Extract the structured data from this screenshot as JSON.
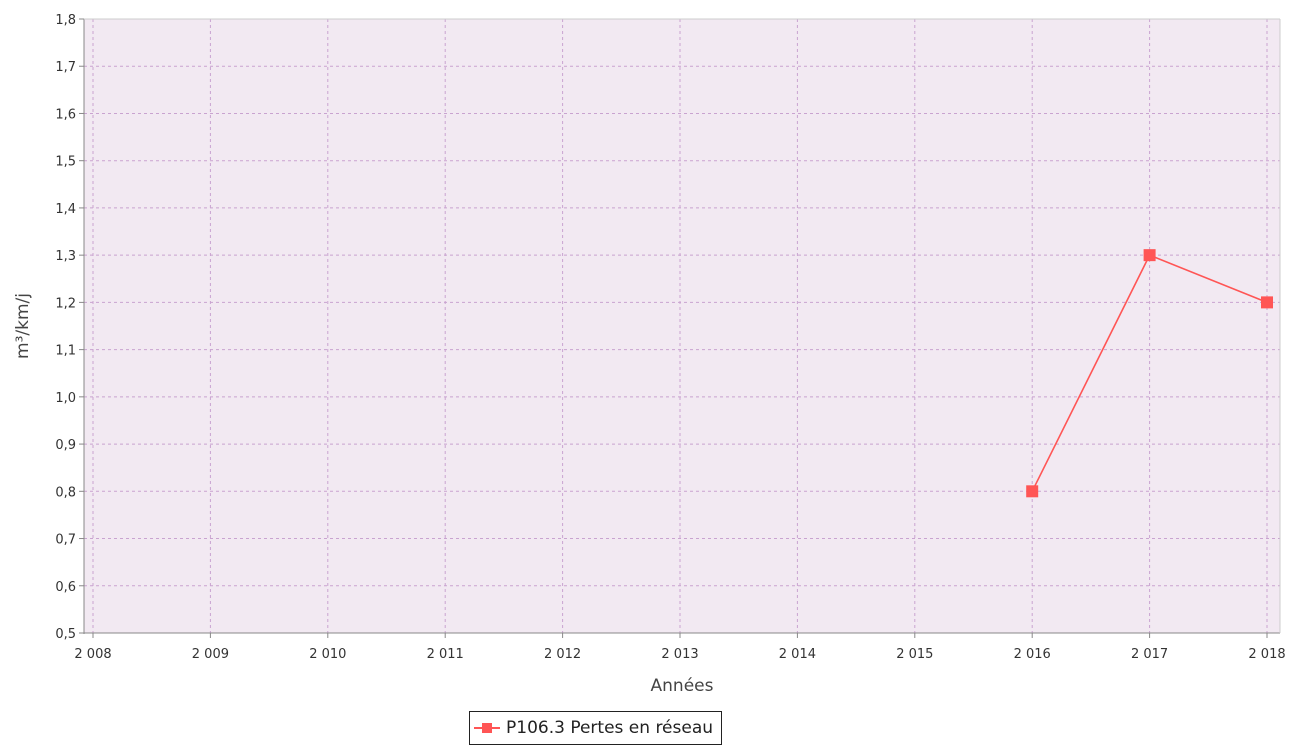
{
  "chart_data": {
    "type": "line",
    "xlabel": "Années",
    "ylabel": "m³/km/j",
    "xlim": [
      2008,
      2018
    ],
    "ylim": [
      0.5,
      1.8
    ],
    "x_ticks": [
      2008,
      2009,
      2010,
      2011,
      2012,
      2013,
      2014,
      2015,
      2016,
      2017,
      2018
    ],
    "x_tick_labels": [
      "2 008",
      "2 009",
      "2 010",
      "2 011",
      "2 012",
      "2 013",
      "2 014",
      "2 015",
      "2 016",
      "2 017",
      "2 018"
    ],
    "y_ticks": [
      0.5,
      0.6,
      0.7,
      0.8,
      0.9,
      1.0,
      1.1,
      1.2,
      1.3,
      1.4,
      1.5,
      1.6,
      1.7,
      1.8
    ],
    "y_tick_labels": [
      "0,5",
      "0,6",
      "0,7",
      "0,8",
      "0,9",
      "1,0",
      "1,1",
      "1,2",
      "1,3",
      "1,4",
      "1,5",
      "1,6",
      "1,7",
      "1,8"
    ],
    "grid": true,
    "legend_position": "bottom-center",
    "series": [
      {
        "name": "P106.3 Pertes en réseau",
        "color": "#ff5555",
        "marker": "square",
        "x": [
          2016,
          2017,
          2018
        ],
        "y": [
          0.8,
          1.3,
          1.2
        ]
      }
    ]
  },
  "colors": {
    "plot_background": "#f2e9f2",
    "grid": "#c9a3d0",
    "axis": "#888888"
  }
}
